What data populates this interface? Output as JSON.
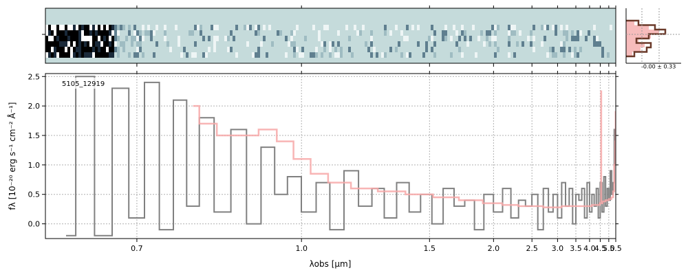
{
  "chart_data": [
    {
      "type": "heatmap",
      "panel": "2d-spectrum",
      "background_color": "#c5dbdb",
      "x_range_um": [
        0.6,
        5.5
      ],
      "y_ticks": [
        ""
      ]
    },
    {
      "type": "line",
      "panel": "1d-spectrum",
      "label": "5105_12919",
      "xlabel": "λobs [μm]",
      "ylabel": "fλ [10⁻²⁰ erg s⁻¹ cm⁻² Å⁻¹]",
      "xlim": [
        0.6,
        5.5
      ],
      "xscale": "reciprocal",
      "ylim": [
        -0.25,
        2.55
      ],
      "x_ticks": [
        0.7,
        1.0,
        1.5,
        2.0,
        2.5,
        3.0,
        3.5,
        4.0,
        4.5,
        5.0,
        5.5
      ],
      "x_tick_labels": [
        "0.7",
        "1.0",
        "1.5",
        "2.0",
        "2.5",
        "3.0",
        "3.5",
        "4.0",
        "4.5",
        "5.0",
        "5.5"
      ],
      "y_ticks": [
        0.0,
        0.5,
        1.0,
        1.5,
        2.0,
        2.5
      ],
      "y_tick_labels": [
        "0.0",
        "0.5",
        "1.0",
        "1.5",
        "2.0",
        "2.5"
      ],
      "grid": true,
      "series": [
        {
          "role": "data",
          "color": "#808080",
          "x": [
            0.62,
            0.64,
            0.66,
            0.68,
            0.7,
            0.72,
            0.74,
            0.76,
            0.78,
            0.8,
            0.83,
            0.86,
            0.89,
            0.92,
            0.95,
            0.98,
            1.02,
            1.06,
            1.1,
            1.15,
            1.2,
            1.25,
            1.3,
            1.36,
            1.42,
            1.48,
            1.55,
            1.62,
            1.7,
            1.78,
            1.86,
            1.95,
            2.05,
            2.15,
            2.25,
            2.35,
            2.45,
            2.55,
            2.65,
            2.75,
            2.85,
            2.95,
            3.05,
            3.15,
            3.25,
            3.35,
            3.45,
            3.55,
            3.65,
            3.75,
            3.85,
            3.95,
            4.05,
            4.15,
            4.25,
            4.35,
            4.45,
            4.55,
            4.65,
            4.75,
            4.85,
            4.95,
            5.05,
            5.15,
            5.25,
            5.35,
            5.42,
            5.48
          ],
          "y": [
            -0.2,
            2.5,
            -0.2,
            2.3,
            0.1,
            2.4,
            -0.1,
            2.1,
            0.3,
            1.8,
            0.2,
            1.6,
            0.0,
            1.3,
            0.5,
            0.8,
            0.2,
            0.7,
            -0.1,
            0.9,
            0.3,
            0.6,
            0.1,
            0.7,
            0.2,
            0.5,
            0.0,
            0.6,
            0.3,
            0.4,
            -0.1,
            0.5,
            0.2,
            0.6,
            0.1,
            0.4,
            0.3,
            0.5,
            -0.1,
            0.6,
            0.2,
            0.5,
            0.1,
            0.7,
            0.3,
            0.6,
            0.0,
            0.5,
            0.4,
            0.6,
            0.1,
            0.7,
            0.2,
            0.5,
            0.3,
            0.6,
            0.1,
            0.7,
            0.2,
            0.8,
            0.3,
            0.6,
            0.4,
            0.9,
            0.5,
            0.7,
            1.6,
            1.0
          ]
        },
        {
          "role": "model",
          "color": "#f7a8a8",
          "x": [
            0.78,
            0.8,
            0.84,
            0.88,
            0.92,
            0.96,
            1.0,
            1.05,
            1.1,
            1.2,
            1.3,
            1.45,
            1.6,
            1.8,
            2.0,
            2.2,
            2.4,
            2.6,
            2.8,
            3.0,
            3.2,
            3.4,
            3.6,
            3.8,
            4.0,
            4.2,
            4.4,
            4.54,
            4.55,
            4.56,
            4.7,
            4.9,
            5.1,
            5.25,
            5.35,
            5.42,
            5.48,
            5.5
          ],
          "y": [
            2.0,
            1.7,
            1.5,
            1.5,
            1.6,
            1.4,
            1.1,
            0.85,
            0.7,
            0.6,
            0.55,
            0.5,
            0.45,
            0.4,
            0.35,
            0.32,
            0.3,
            0.3,
            0.28,
            0.28,
            0.3,
            0.3,
            0.3,
            0.3,
            0.3,
            0.32,
            0.32,
            0.35,
            2.25,
            0.35,
            0.38,
            0.4,
            0.42,
            0.45,
            0.55,
            1.0,
            1.4,
            1.9
          ]
        }
      ]
    },
    {
      "type": "histogram",
      "panel": "residual-histogram",
      "annotation": "-0.00 ± 0.33",
      "counts": [
        0.3,
        0.7,
        0.95,
        0.55,
        0.25,
        0.6,
        0.5,
        0.2
      ],
      "model_counts": [
        0.2,
        0.55,
        0.8,
        0.6,
        0.3,
        0.45,
        0.35,
        0.15
      ]
    }
  ]
}
